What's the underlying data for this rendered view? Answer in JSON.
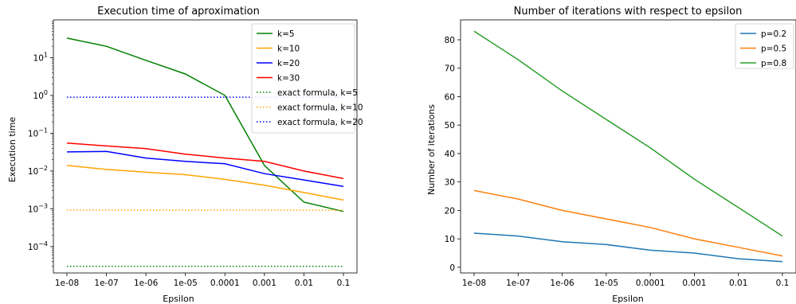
{
  "chart_data": [
    {
      "type": "line",
      "title": "Execution time of aproximation",
      "xlabel": "Epsilon",
      "ylabel": "Execution time",
      "yscale": "log",
      "ylim": [
        2e-05,
        100
      ],
      "x_tick_labels": [
        "1e-08",
        "1e-07",
        "1e-06",
        "1e-05",
        "0.0001",
        "0.001",
        "0.01",
        "0.1"
      ],
      "y_ticks": [
        {
          "base": "10",
          "exp": "−4",
          "value": 0.0001
        },
        {
          "base": "10",
          "exp": "−3",
          "value": 0.001
        },
        {
          "base": "10",
          "exp": "−2",
          "value": 0.01
        },
        {
          "base": "10",
          "exp": "−1",
          "value": 0.1
        },
        {
          "base": "10",
          "exp": "0",
          "value": 1
        },
        {
          "base": "10",
          "exp": "1",
          "value": 10
        }
      ],
      "legend_position": "top-right",
      "grid": false,
      "series": [
        {
          "name": "k=5",
          "color": "#008000",
          "style": "solid",
          "values": [
            33,
            20,
            8.5,
            3.7,
            1.0,
            0.014,
            0.0015,
            0.00085
          ]
        },
        {
          "name": "k=10",
          "color": "#ffa500",
          "style": "solid",
          "values": [
            0.014,
            0.011,
            0.0093,
            0.008,
            0.006,
            0.0042,
            0.0027,
            0.0017
          ]
        },
        {
          "name": "k=20",
          "color": "#0000ff",
          "style": "solid",
          "values": [
            0.032,
            0.033,
            0.022,
            0.018,
            0.0155,
            0.0085,
            0.0058,
            0.0039
          ]
        },
        {
          "name": "k=30",
          "color": "#ff0000",
          "style": "solid",
          "values": [
            0.055,
            0.046,
            0.039,
            0.028,
            0.022,
            0.018,
            0.01,
            0.0063
          ]
        },
        {
          "name": "exact formula, k=5",
          "color": "#008000",
          "style": "dotted",
          "values": [
            3e-05,
            3e-05,
            3e-05,
            3e-05,
            3e-05,
            3e-05,
            3e-05,
            3e-05
          ]
        },
        {
          "name": "exact formula, k=10",
          "color": "#ffa500",
          "style": "dotted",
          "values": [
            0.00092,
            0.00092,
            0.00092,
            0.00092,
            0.00092,
            0.00092,
            0.00092,
            0.00092
          ]
        },
        {
          "name": "exact formula, k=20",
          "color": "#0000ff",
          "style": "dotted",
          "values": [
            0.9,
            0.9,
            0.9,
            0.9,
            0.9,
            0.9,
            0.9,
            0.9
          ]
        }
      ]
    },
    {
      "type": "line",
      "title": "Number of iterations with respect to epsilon",
      "xlabel": "Epsilon",
      "ylabel": "Number of iterations",
      "yscale": "linear",
      "ylim": [
        -2,
        87
      ],
      "x_tick_labels": [
        "1e-08",
        "1e-07",
        "1e-06",
        "1e-05",
        "0.0001",
        "0.001",
        "0.01",
        "0.1"
      ],
      "y_ticks": [
        0,
        10,
        20,
        30,
        40,
        50,
        60,
        70,
        80
      ],
      "legend_position": "top-right",
      "grid": false,
      "series": [
        {
          "name": "p=0.2",
          "color": "#1f77b4",
          "style": "solid",
          "values": [
            12,
            11,
            9,
            8,
            6,
            5,
            3,
            2
          ]
        },
        {
          "name": "p=0.5",
          "color": "#ff7f0e",
          "style": "solid",
          "values": [
            27,
            24,
            20,
            17,
            14,
            10,
            7,
            4
          ]
        },
        {
          "name": "p=0.8",
          "color": "#2ca02c",
          "style": "solid",
          "values": [
            83,
            73,
            62,
            52,
            42,
            31,
            21,
            11
          ]
        }
      ]
    }
  ]
}
